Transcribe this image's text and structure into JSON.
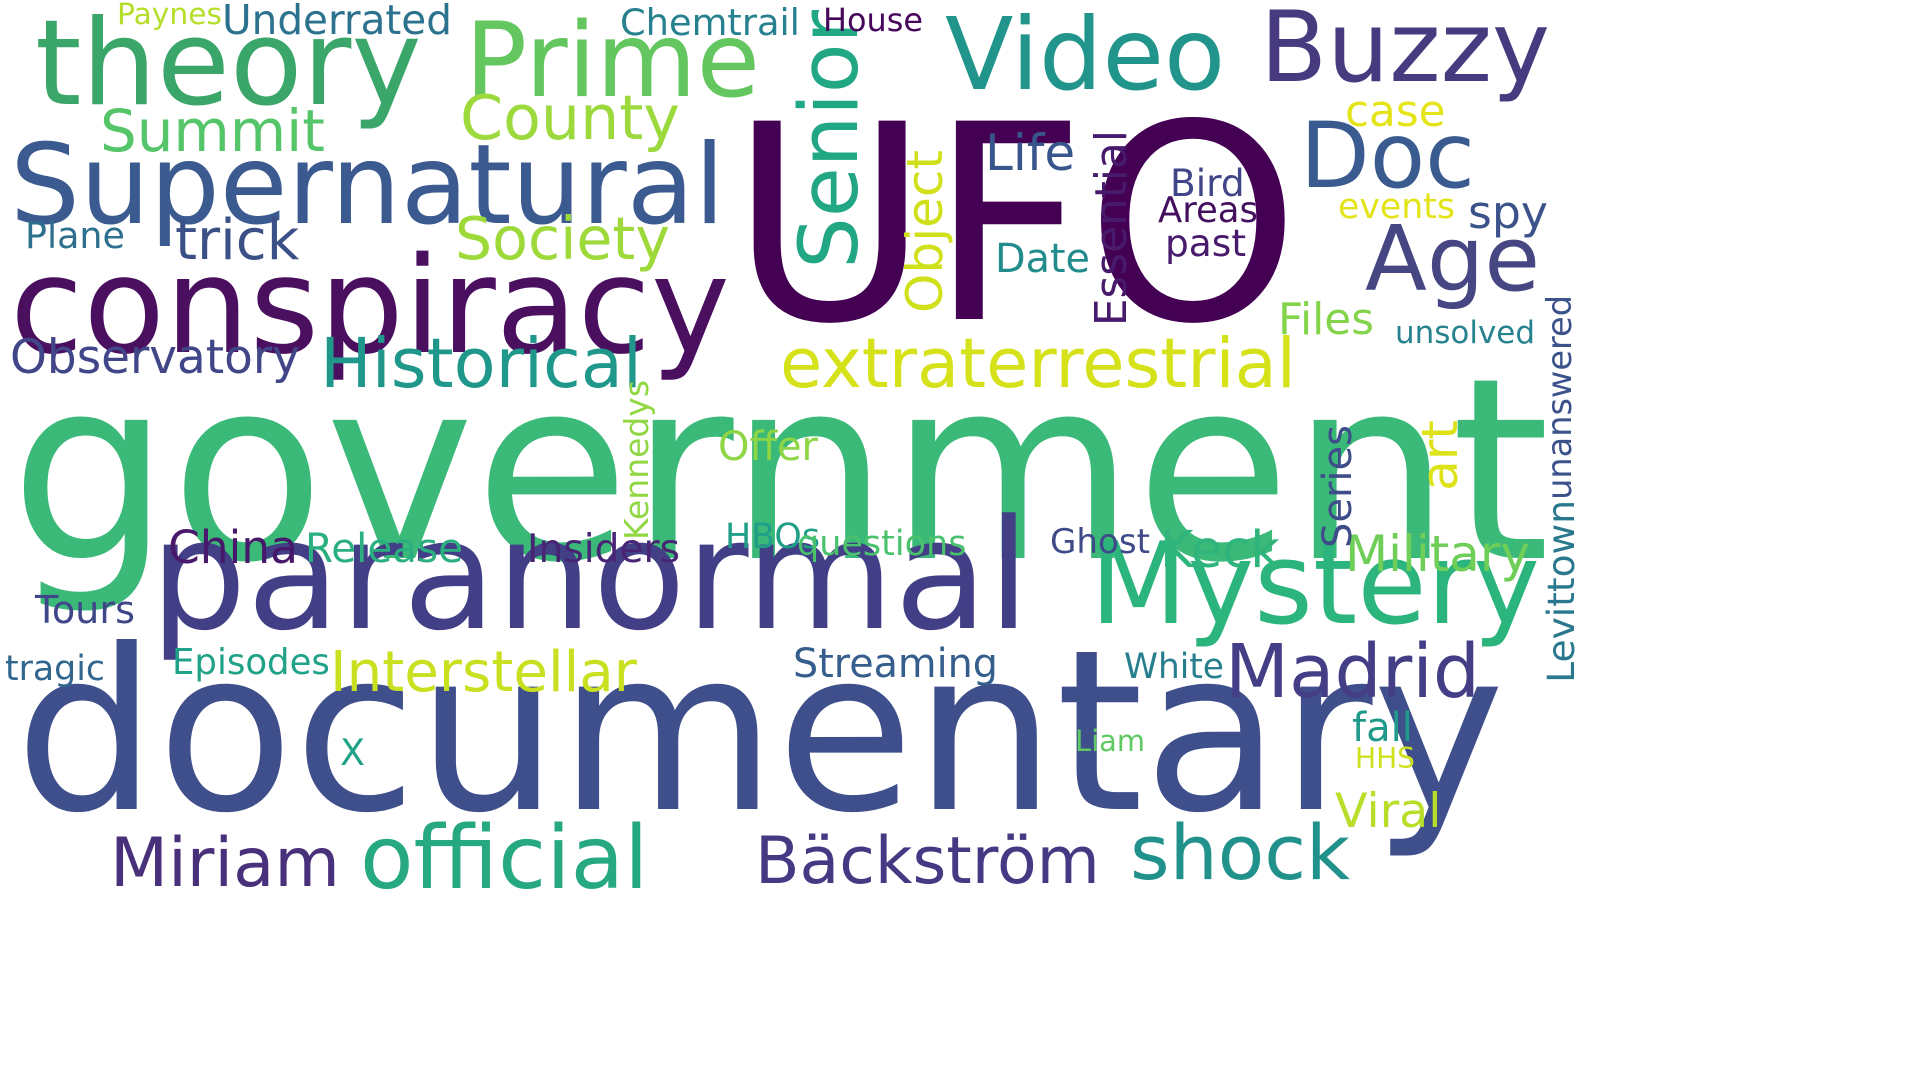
{
  "words": [
    {
      "id": "ufo",
      "text": "UFO",
      "color": "#440154"
    },
    {
      "id": "government",
      "text": "government",
      "color": "#3bb978"
    },
    {
      "id": "documentary",
      "text": "documentary",
      "color": "#3f4f8b"
    },
    {
      "id": "paranormal",
      "text": "paranormal",
      "color": "#423f86"
    },
    {
      "id": "conspiracy",
      "text": "conspiracy",
      "color": "#4b0f60"
    },
    {
      "id": "supernatural",
      "text": "Supernatural",
      "color": "#3b5a8f"
    },
    {
      "id": "theory",
      "text": "theory",
      "color": "#3ba66a"
    },
    {
      "id": "prime",
      "text": "Prime",
      "color": "#64c65e"
    },
    {
      "id": "video",
      "text": "Video",
      "color": "#21958b"
    },
    {
      "id": "buzzy",
      "text": "Buzzy",
      "color": "#473a7f"
    },
    {
      "id": "doc",
      "text": "Doc",
      "color": "#3a5b8f"
    },
    {
      "id": "age",
      "text": "Age",
      "color": "#464683"
    },
    {
      "id": "mystery",
      "text": "Mystery",
      "color": "#2bb47c"
    },
    {
      "id": "extraterrestrial",
      "text": "extraterrestrial",
      "color": "#d5e21a"
    },
    {
      "id": "senior",
      "text": "Senior",
      "color": "#22a785"
    },
    {
      "id": "historical",
      "text": "Historical",
      "color": "#1f988b"
    },
    {
      "id": "summit",
      "text": "Summit",
      "color": "#54c568"
    },
    {
      "id": "county",
      "text": "County",
      "color": "#9bd93c"
    },
    {
      "id": "society",
      "text": "Society",
      "color": "#9ed93a"
    },
    {
      "id": "trick",
      "text": "trick",
      "color": "#3b5086"
    },
    {
      "id": "observatory",
      "text": "Observatory",
      "color": "#404688"
    },
    {
      "id": "madrid",
      "text": "Madrid",
      "color": "#433e85"
    },
    {
      "id": "miriam",
      "text": "Miriam",
      "color": "#48307b"
    },
    {
      "id": "official",
      "text": "official",
      "color": "#26a881"
    },
    {
      "id": "backstrom",
      "text": "Bäckström",
      "color": "#443983"
    },
    {
      "id": "shock",
      "text": "shock",
      "color": "#21918c"
    },
    {
      "id": "interstellar",
      "text": "Interstellar",
      "color": "#c8e020"
    },
    {
      "id": "keck",
      "text": "Keck",
      "color": "#2fb47c"
    },
    {
      "id": "military",
      "text": "Military",
      "color": "#6ece58"
    },
    {
      "id": "art",
      "text": "art",
      "color": "#dde318"
    },
    {
      "id": "object",
      "text": "Object",
      "color": "#d0e11c"
    },
    {
      "id": "essential",
      "text": "Essential",
      "color": "#481a6c"
    },
    {
      "id": "life",
      "text": "Life",
      "color": "#39568c"
    },
    {
      "id": "date",
      "text": "Date",
      "color": "#228c8d"
    },
    {
      "id": "bird",
      "text": "Bird",
      "color": "#404588"
    },
    {
      "id": "areas",
      "text": "Areas",
      "color": "#440f5e"
    },
    {
      "id": "past",
      "text": "past",
      "color": "#481b6d"
    },
    {
      "id": "case",
      "text": "case",
      "color": "#e5e419"
    },
    {
      "id": "events",
      "text": "events",
      "color": "#e2e418"
    },
    {
      "id": "spy",
      "text": "spy",
      "color": "#3b528b"
    },
    {
      "id": "files",
      "text": "Files",
      "color": "#84d44b"
    },
    {
      "id": "unsolved",
      "text": "unsolved",
      "color": "#26828e"
    },
    {
      "id": "unanswered",
      "text": "unanswered",
      "color": "#3b528b"
    },
    {
      "id": "levittown",
      "text": "Levittown",
      "color": "#2a788e"
    },
    {
      "id": "series",
      "text": "Series",
      "color": "#3e4c8a"
    },
    {
      "id": "chemtrail",
      "text": "Chemtrail",
      "color": "#27808e"
    },
    {
      "id": "house",
      "text": "House",
      "color": "#46075a"
    },
    {
      "id": "paynes",
      "text": "Paynes",
      "color": "#b5de2b"
    },
    {
      "id": "underrated",
      "text": "Underrated",
      "color": "#2c728e"
    },
    {
      "id": "plane",
      "text": "Plane",
      "color": "#2d708e"
    },
    {
      "id": "china",
      "text": "China",
      "color": "#48186a"
    },
    {
      "id": "release",
      "text": "Release",
      "color": "#2ab07f"
    },
    {
      "id": "insiders",
      "text": "Insiders",
      "color": "#482475"
    },
    {
      "id": "hbos",
      "text": "HBOs",
      "color": "#1f9f88"
    },
    {
      "id": "questions",
      "text": "questions",
      "color": "#4ac16d"
    },
    {
      "id": "ghost",
      "text": "Ghost",
      "color": "#3e4a89"
    },
    {
      "id": "kennedys",
      "text": "Kennedys",
      "color": "#90d743"
    },
    {
      "id": "offer",
      "text": "Offer",
      "color": "#8ed645"
    },
    {
      "id": "tours",
      "text": "Tours",
      "color": "#3f4788"
    },
    {
      "id": "tragic",
      "text": "tragic",
      "color": "#31668e"
    },
    {
      "id": "episodes",
      "text": "Episodes",
      "color": "#1fa287"
    },
    {
      "id": "streaming",
      "text": "Streaming",
      "color": "#355e8d"
    },
    {
      "id": "white",
      "text": "White",
      "color": "#277f8e"
    },
    {
      "id": "x",
      "text": "X",
      "color": "#20a386"
    },
    {
      "id": "liam",
      "text": "Liam",
      "color": "#5ec962"
    },
    {
      "id": "fall",
      "text": "fall",
      "color": "#1f9a8a"
    },
    {
      "id": "hhs",
      "text": "HHS",
      "color": "#cde11d"
    },
    {
      "id": "viral",
      "text": "Viral",
      "color": "#b8de29"
    }
  ]
}
